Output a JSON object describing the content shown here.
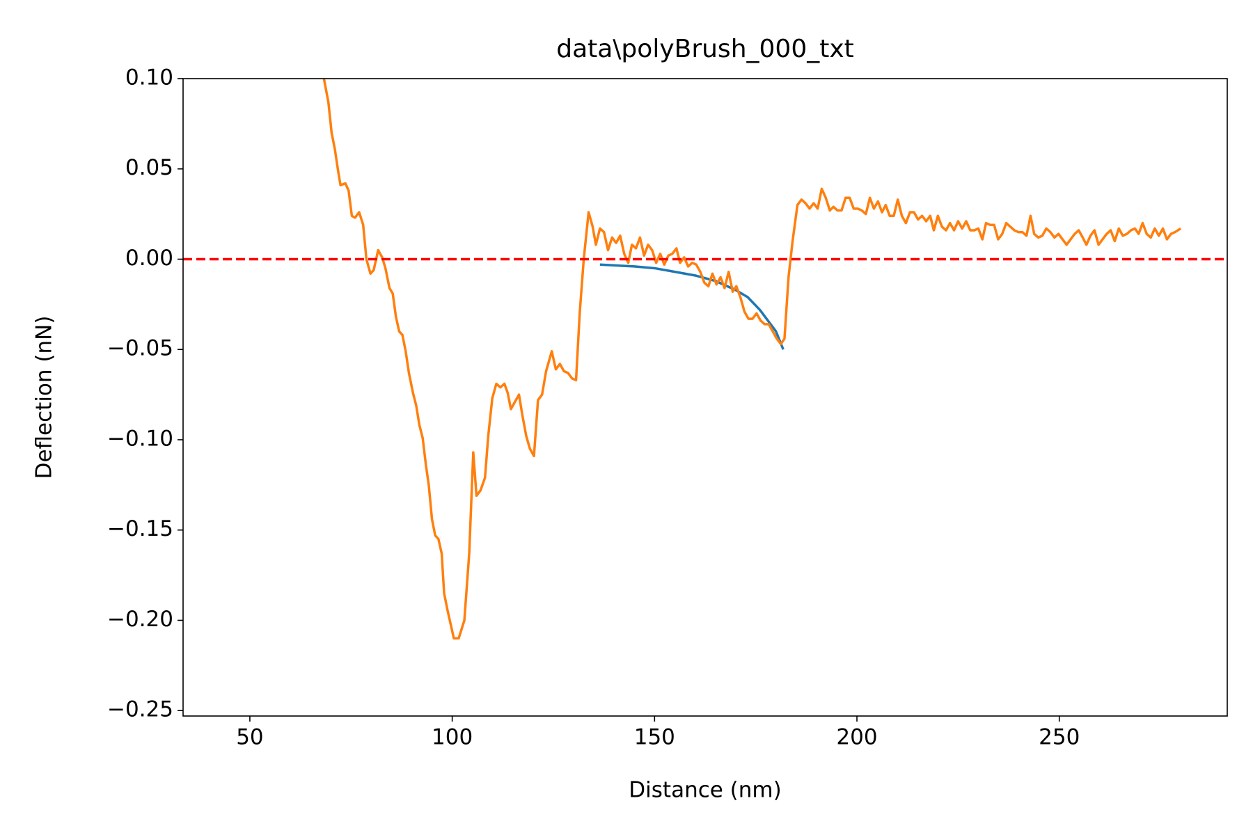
{
  "chart_data": {
    "type": "line",
    "title": "data\\polyBrush_000_txt",
    "x_label": "Distance (nm)",
    "y_label": "Deflection (nN)",
    "xlim": [
      33.5,
      291.5
    ],
    "ylim": [
      -0.253,
      0.1
    ],
    "xticks": [
      50,
      100,
      150,
      200,
      250
    ],
    "yticks": [
      {
        "value": 0.1,
        "label": "0.10"
      },
      0.05,
      {
        "value": 0,
        "label": "0.00"
      },
      {
        "value": -0.05,
        "label": "−0.05"
      },
      {
        "value": -0.1,
        "label": "−0.10"
      },
      {
        "value": -0.15,
        "label": "−0.15"
      },
      {
        "value": -0.2,
        "label": "−0.20"
      },
      {
        "value": -0.25,
        "label": "−0.25"
      }
    ],
    "grid": false,
    "hlines": [
      {
        "y": 0,
        "color": "#ff0000",
        "style": "dashed"
      }
    ],
    "series": [
      {
        "color": "#1f77b4",
        "x": [
          136.5,
          145,
          150,
          155,
          160,
          165,
          170,
          173,
          176,
          178,
          180,
          181.8
        ],
        "values": [
          -0.003,
          -0.004,
          -0.005,
          -0.007,
          -0.009,
          -0.012,
          -0.017,
          -0.021,
          -0.028,
          -0.034,
          -0.04,
          -0.05
        ]
      },
      {
        "color": "#ff7f0e",
        "x": [
          68.3,
          69.4,
          70.2,
          71.0,
          71.8,
          72.4,
          73.6,
          74.4,
          75.2,
          76.0,
          77.0,
          78.0,
          78.8,
          79.8,
          80.6,
          81.7,
          82.7,
          83.5,
          84.5,
          85.3,
          86.1,
          86.9,
          87.7,
          88.5,
          89.3,
          90.3,
          91.1,
          91.9,
          92.7,
          93.5,
          94.2,
          95.0,
          95.8,
          96.6,
          97.4,
          98.0,
          98.8,
          99.6,
          100.4,
          101.6,
          103.0,
          104.2,
          105.2,
          106.0,
          107.0,
          108.1,
          108.9,
          109.9,
          110.9,
          111.9,
          112.9,
          113.7,
          114.5,
          115.5,
          116.5,
          117.3,
          118.3,
          119.2,
          120.2,
          121.2,
          122.2,
          123.2,
          124.6,
          125.6,
          126.6,
          127.6,
          128.6,
          129.6,
          130.6,
          131.5,
          132.5,
          133.7,
          134.7,
          135.5,
          136.5,
          137.5,
          138.5,
          139.5,
          140.5,
          141.5,
          142.5,
          143.5,
          144.4,
          145.4,
          146.4,
          147.4,
          148.4,
          149.4,
          150.4,
          151.4,
          152.4,
          153.4,
          154.4,
          155.4,
          156.3,
          157.3,
          158.3,
          159.3,
          160.3,
          161.3,
          162.3,
          163.3,
          164.3,
          165.3,
          166.3,
          167.3,
          168.3,
          169.3,
          170.2,
          171.2,
          172.2,
          173.2,
          174.2,
          175.2,
          176.2,
          177.2,
          178.2,
          179.2,
          180.2,
          181.2,
          182.1,
          183.1,
          184.1,
          185.3,
          186.3,
          187.3,
          188.3,
          189.3,
          190.3,
          191.3,
          192.3,
          193.3,
          194.2,
          195.2,
          196.2,
          197.2,
          198.2,
          199.2,
          200.2,
          201.2,
          202.2,
          203.2,
          204.2,
          205.2,
          206.2,
          207.1,
          208.1,
          209.1,
          210.1,
          211.1,
          212.1,
          213.1,
          214.1,
          215.1,
          216.1,
          217.1,
          218.1,
          219.0,
          220.0,
          221.0,
          222.0,
          223.0,
          224.0,
          225.0,
          226.0,
          227.0,
          228.0,
          229.0,
          230.0,
          231.0,
          231.9,
          232.9,
          233.9,
          234.9,
          235.9,
          236.9,
          237.9,
          238.9,
          239.9,
          240.9,
          241.9,
          242.9,
          243.8,
          244.8,
          245.8,
          246.8,
          247.8,
          248.8,
          249.8,
          250.8,
          251.8,
          252.8,
          253.8,
          254.8,
          255.8,
          256.7,
          257.7,
          258.7,
          259.7,
          260.7,
          261.7,
          262.7,
          263.7,
          264.7,
          265.7,
          266.7,
          267.7,
          268.7,
          269.6,
          270.6,
          271.6,
          272.6,
          273.6,
          274.6,
          275.6,
          276.6,
          277.6,
          278.6,
          280.0
        ],
        "values": [
          0.1,
          0.087,
          0.07,
          0.061,
          0.049,
          0.041,
          0.042,
          0.038,
          0.024,
          0.023,
          0.026,
          0.019,
          0.0,
          -0.008,
          -0.006,
          0.005,
          0.001,
          -0.005,
          -0.016,
          -0.019,
          -0.032,
          -0.04,
          -0.042,
          -0.051,
          -0.063,
          -0.074,
          -0.081,
          -0.092,
          -0.099,
          -0.114,
          -0.125,
          -0.144,
          -0.153,
          -0.155,
          -0.163,
          -0.185,
          -0.194,
          -0.202,
          -0.21,
          -0.21,
          -0.2,
          -0.163,
          -0.107,
          -0.131,
          -0.128,
          -0.121,
          -0.098,
          -0.077,
          -0.069,
          -0.071,
          -0.069,
          -0.074,
          -0.083,
          -0.079,
          -0.075,
          -0.086,
          -0.098,
          -0.105,
          -0.109,
          -0.078,
          -0.075,
          -0.062,
          -0.051,
          -0.061,
          -0.058,
          -0.062,
          -0.063,
          -0.066,
          -0.067,
          -0.03,
          0.0,
          0.026,
          0.018,
          0.008,
          0.017,
          0.015,
          0.005,
          0.012,
          0.009,
          0.013,
          0.003,
          -0.002,
          0.008,
          0.006,
          0.012,
          0.002,
          0.008,
          0.005,
          -0.002,
          0.003,
          -0.003,
          0.002,
          0.003,
          0.006,
          -0.002,
          0.001,
          -0.004,
          -0.002,
          -0.003,
          -0.007,
          -0.013,
          -0.015,
          -0.008,
          -0.014,
          -0.01,
          -0.016,
          -0.007,
          -0.018,
          -0.015,
          -0.021,
          -0.029,
          -0.033,
          -0.033,
          -0.03,
          -0.034,
          -0.036,
          -0.036,
          -0.04,
          -0.044,
          -0.047,
          -0.044,
          -0.01,
          0.01,
          0.03,
          0.033,
          0.031,
          0.028,
          0.031,
          0.028,
          0.039,
          0.034,
          0.027,
          0.029,
          0.027,
          0.027,
          0.034,
          0.034,
          0.028,
          0.028,
          0.027,
          0.025,
          0.034,
          0.028,
          0.032,
          0.026,
          0.03,
          0.024,
          0.024,
          0.033,
          0.024,
          0.02,
          0.026,
          0.026,
          0.022,
          0.024,
          0.021,
          0.024,
          0.016,
          0.024,
          0.018,
          0.016,
          0.02,
          0.016,
          0.021,
          0.017,
          0.021,
          0.016,
          0.016,
          0.017,
          0.011,
          0.02,
          0.019,
          0.019,
          0.011,
          0.014,
          0.02,
          0.018,
          0.016,
          0.015,
          0.015,
          0.013,
          0.024,
          0.014,
          0.012,
          0.013,
          0.017,
          0.015,
          0.012,
          0.014,
          0.011,
          0.008,
          0.011,
          0.014,
          0.016,
          0.012,
          0.008,
          0.013,
          0.016,
          0.008,
          0.011,
          0.014,
          0.016,
          0.01,
          0.017,
          0.013,
          0.014,
          0.016,
          0.017,
          0.014,
          0.02,
          0.014,
          0.012,
          0.017,
          0.013,
          0.017,
          0.011,
          0.014,
          0.015,
          0.017
        ]
      }
    ]
  }
}
